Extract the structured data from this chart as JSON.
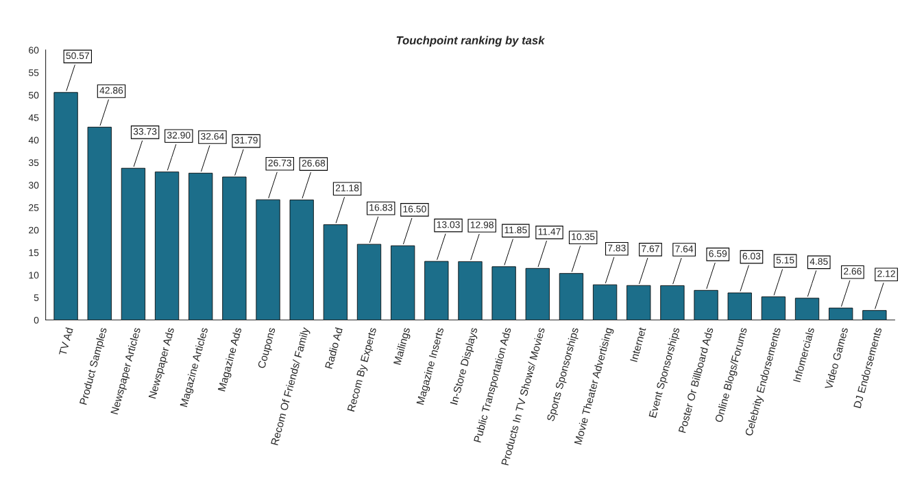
{
  "chart_data": {
    "type": "bar",
    "title": "Touchpoint ranking by task",
    "categories": [
      "TV Ad",
      "Product Samples",
      "Newspaper Articles",
      "Newspaper Ads",
      "Magazine Articles",
      "Magazine Ads",
      "Coupons",
      "Recom Of Friends/ Family",
      "Radio Ad",
      "Recom By Experts",
      "Mailings",
      "Magazine Inserts",
      "In-Store Displays",
      "Public Transportation Ads",
      "Products In TV Shows/ Movies",
      "Sports Sponsorships",
      "Movie Theater Advertising",
      "Internet",
      "Event Sponsorships",
      "Poster Or Billboard Ads",
      "Online Blogs/Forums",
      "Celebrity Endorsements",
      "Infomercials",
      "Video Games",
      "DJ Endorsements"
    ],
    "values": [
      50.57,
      42.86,
      33.73,
      32.9,
      32.64,
      31.79,
      26.73,
      26.68,
      21.18,
      16.83,
      16.5,
      13.03,
      12.98,
      11.85,
      11.47,
      10.35,
      7.83,
      7.67,
      7.64,
      6.59,
      6.03,
      5.15,
      4.85,
      2.66,
      2.12
    ],
    "value_labels": [
      "50.57",
      "42.86",
      "33.73",
      "32.90",
      "32.64",
      "31.79",
      "26.73",
      "26.68",
      "21.18",
      "16.83",
      "16.50",
      "13.03",
      "12.98",
      "11.85",
      "11.47",
      "10.35",
      "7.83",
      "7.67",
      "7.64",
      "6.59",
      "6.03",
      "5.15",
      "4.85",
      "2.66",
      "2.12"
    ],
    "color": "#1c6e8a",
    "ylim": [
      0,
      60
    ],
    "yticks": [
      0,
      5,
      10,
      15,
      20,
      25,
      30,
      35,
      40,
      45,
      50,
      55,
      60
    ],
    "grid": false
  }
}
